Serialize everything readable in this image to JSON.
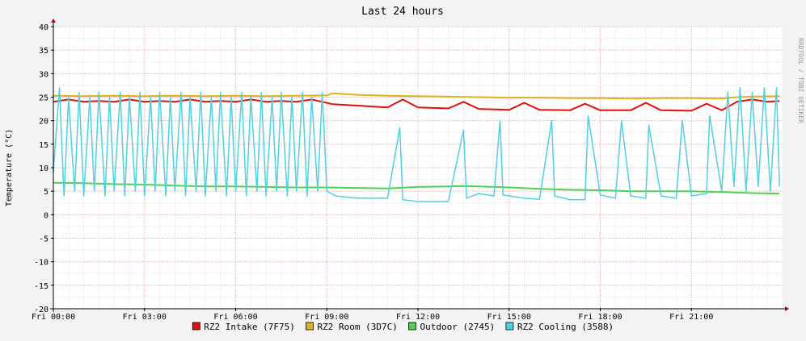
{
  "chart_data": {
    "type": "line",
    "title": "Last 24 hours",
    "ylabel": "Temperature (°C)",
    "xlabel": "",
    "watermark": "RRDTOOL / TOBI OETIKER",
    "ylim": [
      -20,
      40
    ],
    "y_ticks": [
      40,
      35,
      30,
      25,
      20,
      15,
      10,
      5,
      0,
      -5,
      -10,
      -15,
      -20
    ],
    "xlim": [
      0,
      24
    ],
    "x_ticks": [
      {
        "x": 0,
        "label": "Fri 00:00"
      },
      {
        "x": 3,
        "label": "Fri 03:00"
      },
      {
        "x": 6,
        "label": "Fri 06:00"
      },
      {
        "x": 9,
        "label": "Fri 09:00"
      },
      {
        "x": 12,
        "label": "Fri 12:00"
      },
      {
        "x": 15,
        "label": "Fri 15:00"
      },
      {
        "x": 18,
        "label": "Fri 18:00"
      },
      {
        "x": 21,
        "label": "Fri 21:00"
      }
    ],
    "grid": true,
    "legend_position": "bottom",
    "series": [
      {
        "name": "RZ2 Intake (7F75)",
        "color": "#e01010",
        "x": [
          0,
          0.5,
          1,
          1.5,
          2,
          2.5,
          3,
          3.5,
          4,
          4.5,
          5,
          5.5,
          6,
          6.5,
          7,
          7.5,
          8,
          8.5,
          9.2,
          10,
          11,
          11.5,
          12,
          13,
          13.5,
          14,
          15,
          15.5,
          16,
          17,
          17.5,
          18,
          19,
          19.5,
          20,
          21,
          21.5,
          22,
          22.5,
          23,
          23.5,
          23.9
        ],
        "y": [
          24,
          24.5,
          24,
          24.2,
          24,
          24.5,
          24,
          24.2,
          24,
          24.5,
          24,
          24.2,
          24,
          24.5,
          24,
          24.2,
          24,
          24.5,
          23.5,
          23.2,
          22.8,
          24.5,
          22.8,
          22.6,
          24,
          22.5,
          22.3,
          23.8,
          22.3,
          22.2,
          23.6,
          22.2,
          22.2,
          23.8,
          22.2,
          22.1,
          23.6,
          22.2,
          24,
          24.5,
          24,
          24.2
        ]
      },
      {
        "name": "RZ2 Room (3D7C)",
        "color": "#e0b020",
        "x": [
          0,
          1,
          2,
          3,
          4,
          5,
          6,
          7,
          8,
          9,
          9.2,
          10,
          11,
          12,
          13,
          14,
          15,
          16,
          17,
          18,
          19,
          20,
          21,
          22,
          22.5,
          23,
          23.9
        ],
        "y": [
          25.3,
          25.2,
          25.3,
          25.2,
          25.3,
          25.2,
          25.3,
          25.2,
          25.3,
          25.4,
          25.8,
          25.5,
          25.3,
          25.2,
          25.1,
          25.0,
          24.9,
          24.9,
          24.8,
          24.8,
          24.7,
          24.8,
          24.8,
          24.7,
          25.0,
          25.1,
          25.2
        ]
      },
      {
        "name": "Outdoor (2745)",
        "color": "#50d050",
        "x": [
          0,
          1,
          2,
          3,
          4,
          5,
          6,
          7,
          8,
          9,
          10,
          11,
          12,
          13,
          13.5,
          14,
          15,
          16,
          17,
          18,
          19,
          20,
          21,
          22,
          23,
          23.9
        ],
        "y": [
          6.8,
          6.7,
          6.5,
          6.4,
          6.2,
          6.0,
          6.0,
          5.9,
          5.8,
          5.8,
          5.7,
          5.6,
          5.9,
          6.0,
          6.1,
          6.0,
          5.8,
          5.5,
          5.3,
          5.2,
          5.0,
          5.0,
          5.0,
          4.8,
          4.6,
          4.5
        ]
      },
      {
        "name": "RZ2 Cooling (3588)",
        "color": "#50d0e0",
        "x": [
          0,
          0.2,
          0.35,
          0.5,
          0.7,
          0.85,
          1.0,
          1.2,
          1.35,
          1.5,
          1.7,
          1.85,
          2.0,
          2.2,
          2.35,
          2.5,
          2.7,
          2.85,
          3.0,
          3.2,
          3.35,
          3.5,
          3.7,
          3.85,
          4.0,
          4.2,
          4.35,
          4.5,
          4.7,
          4.85,
          5.0,
          5.2,
          5.35,
          5.5,
          5.7,
          5.85,
          6.0,
          6.2,
          6.35,
          6.5,
          6.7,
          6.85,
          7.0,
          7.2,
          7.35,
          7.5,
          7.7,
          7.85,
          8.0,
          8.2,
          8.35,
          8.5,
          8.7,
          8.85,
          9.0,
          9.3,
          10.0,
          11.0,
          11.4,
          11.5,
          12.0,
          13.0,
          13.5,
          13.6,
          14.0,
          14.5,
          14.7,
          14.8,
          15.5,
          16.0,
          16.4,
          16.5,
          17.0,
          17.5,
          17.6,
          18.0,
          18.5,
          18.7,
          19.0,
          19.5,
          19.6,
          20.0,
          20.5,
          20.7,
          21.0,
          21.5,
          21.6,
          22.0,
          22.2,
          22.4,
          22.6,
          22.8,
          23.0,
          23.2,
          23.4,
          23.6,
          23.8,
          23.9
        ],
        "y": [
          9,
          27,
          4,
          25,
          5,
          26,
          4,
          25,
          5,
          26,
          4,
          25,
          5,
          26,
          4,
          25,
          5,
          26,
          4,
          25,
          5,
          26,
          4,
          25,
          5,
          26,
          4,
          25,
          5,
          26,
          4,
          25,
          5,
          26,
          4,
          25,
          5,
          26,
          4,
          25,
          5,
          26,
          4,
          25,
          5,
          26,
          4,
          25,
          5,
          26,
          4,
          25,
          5,
          26,
          5,
          4,
          3.5,
          3.5,
          18.5,
          3.2,
          2.8,
          2.8,
          18,
          3.5,
          4.5,
          4.0,
          20,
          4.2,
          3.5,
          3.3,
          20,
          4.0,
          3.2,
          3.2,
          21,
          4.2,
          3.5,
          20,
          4.0,
          3.5,
          19,
          4.0,
          3.5,
          20,
          4.0,
          4.5,
          21,
          5,
          26,
          6,
          27,
          5,
          26,
          6,
          27,
          5,
          27,
          6
        ]
      }
    ]
  }
}
